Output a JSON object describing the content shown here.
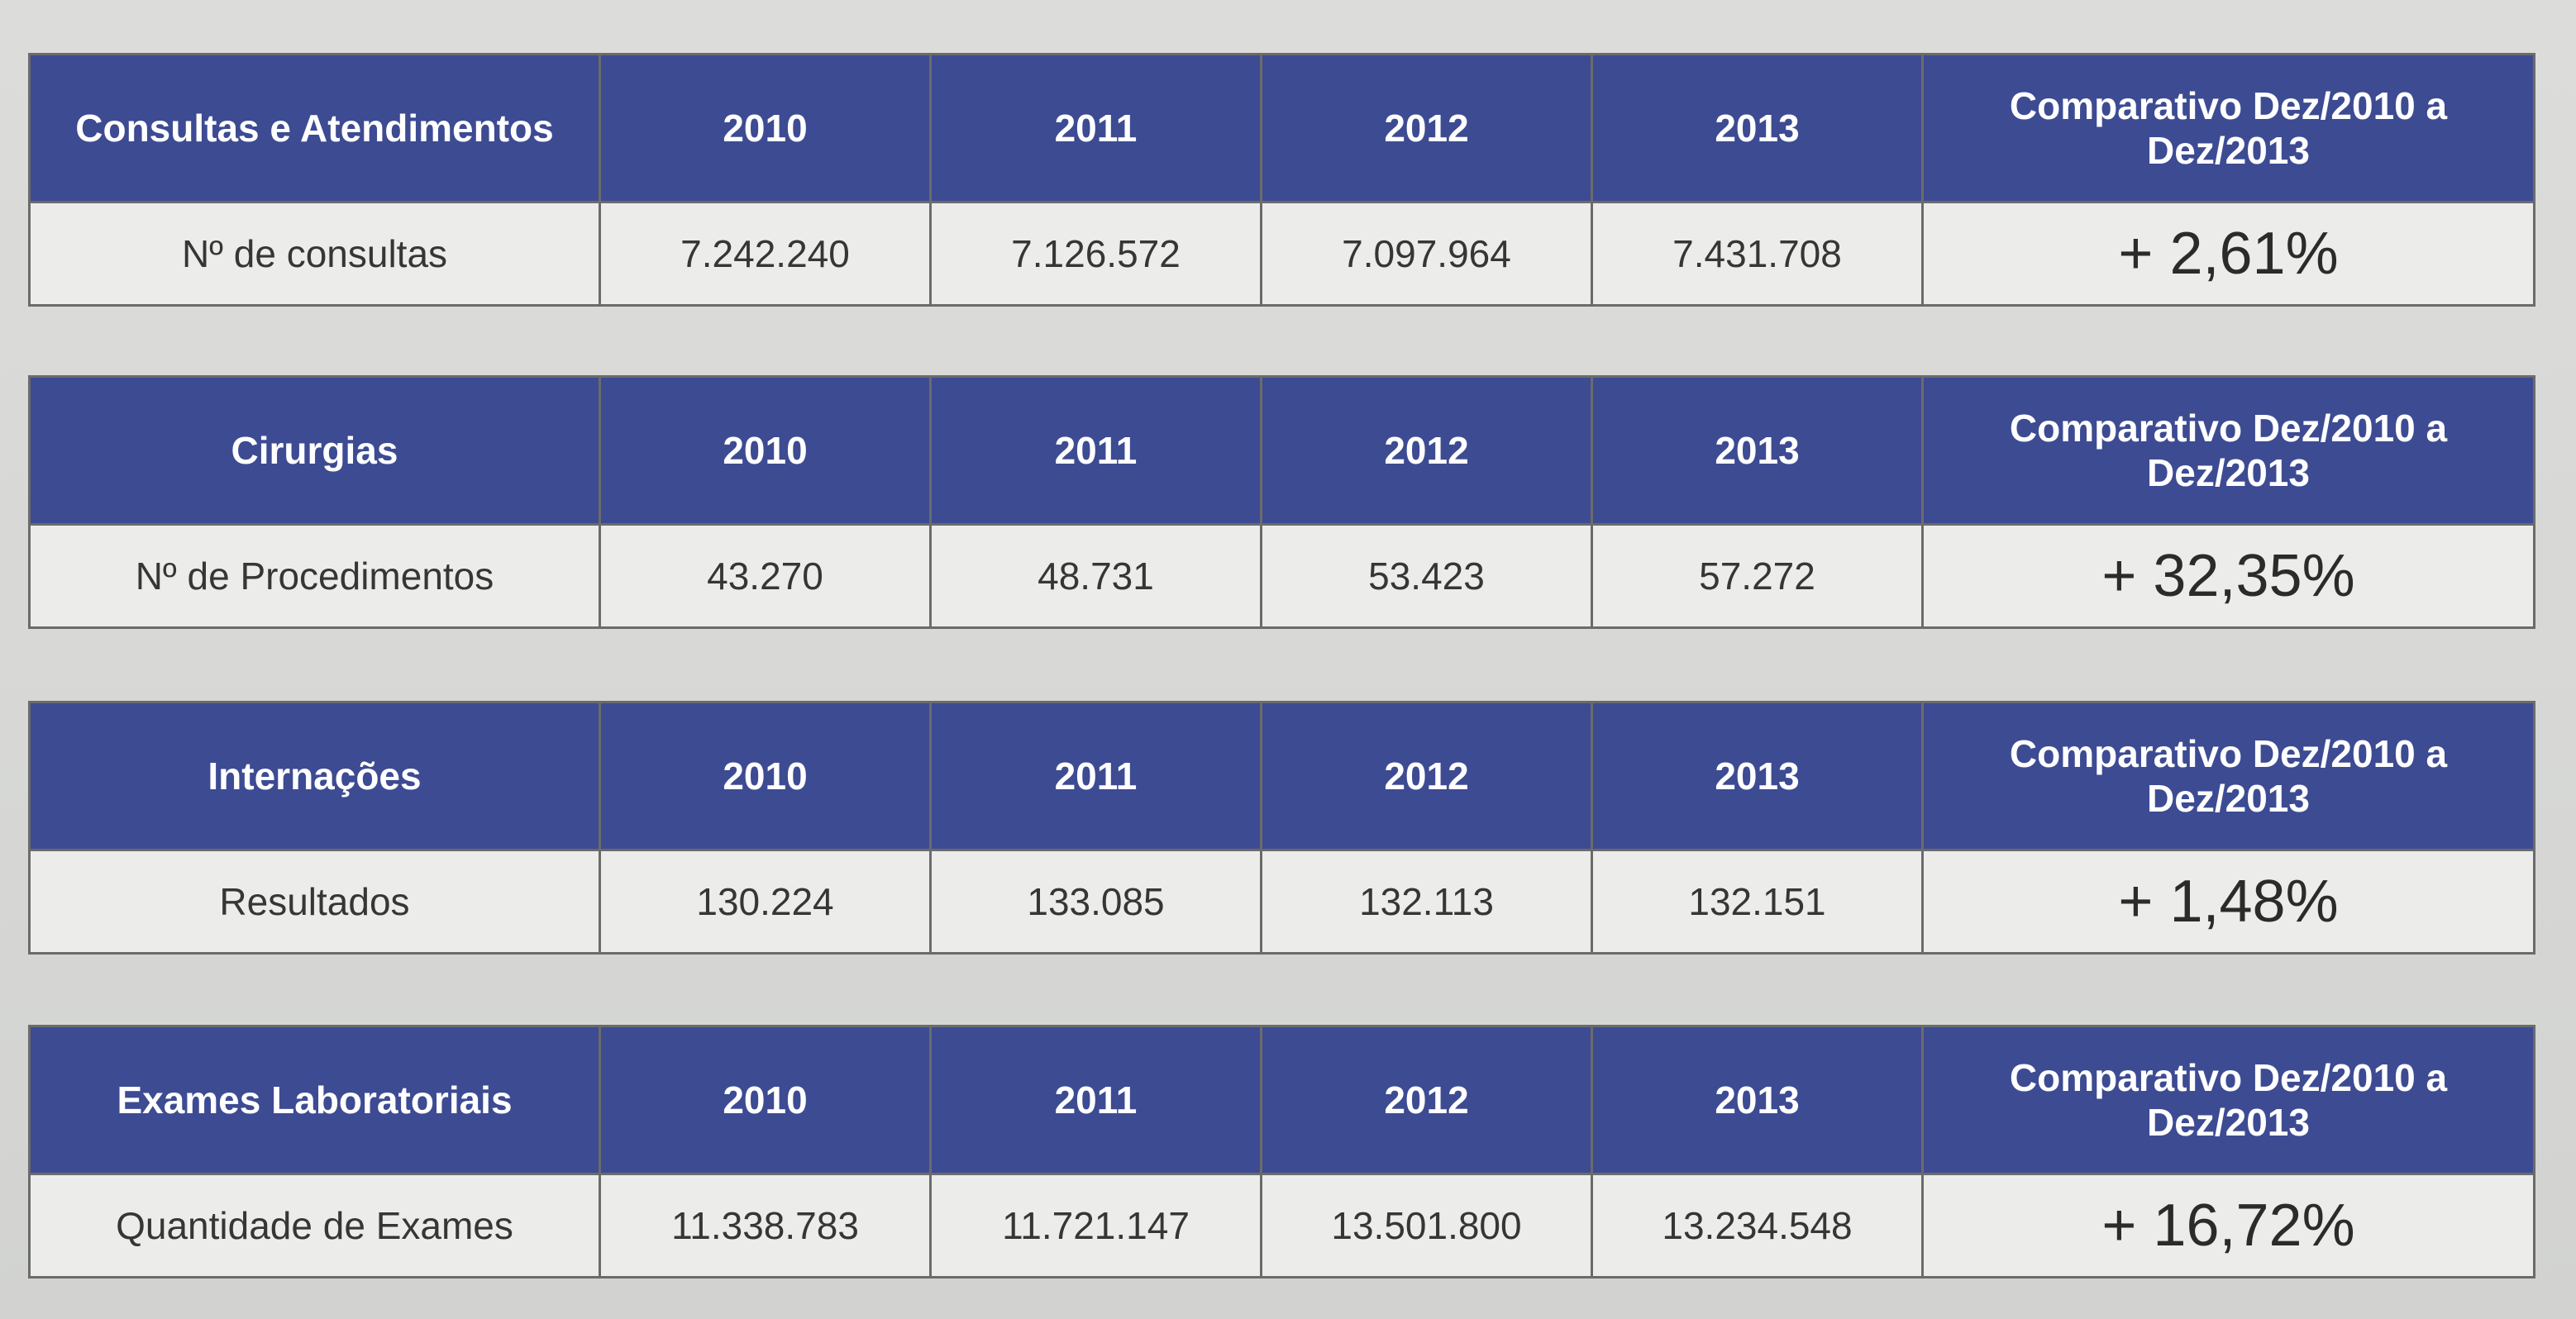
{
  "header": {
    "years": [
      "2010",
      "2011",
      "2012",
      "2013"
    ],
    "comparison_label": "Comparativo Dez/2010 a Dez/2013"
  },
  "tables": [
    {
      "category": "Consultas e Atendimentos",
      "row_label": "Nº de consultas",
      "values": [
        "7.242.240",
        "7.126.572",
        "7.097.964",
        "7.431.708"
      ],
      "comparison": "+ 2,61%"
    },
    {
      "category": "Cirurgias",
      "row_label": "Nº de Procedimentos",
      "values": [
        "43.270",
        "48.731",
        "53.423",
        "57.272"
      ],
      "comparison": "+ 32,35%"
    },
    {
      "category": "Internações",
      "row_label": "Resultados",
      "values": [
        "130.224",
        "133.085",
        "132.113",
        "132.151"
      ],
      "comparison": "+ 1,48%"
    },
    {
      "category": "Exames Laboratoriais",
      "row_label": "Quantidade de Exames",
      "values": [
        "11.338.783",
        "11.721.147",
        "13.501.800",
        "13.234.548"
      ],
      "comparison": "+ 16,72%"
    }
  ],
  "colors": {
    "header_bg": "#3d4b93",
    "header_text": "#ffffff",
    "cell_bg": "#ececea",
    "border": "#6b6b6b"
  }
}
